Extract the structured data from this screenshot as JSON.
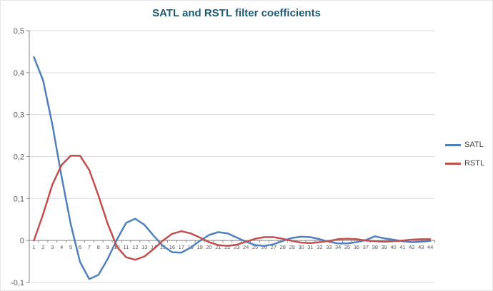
{
  "title": "SATL and RSTL filter coefficients",
  "colors": {
    "title": "#1F5B73",
    "gridline": "#D9D9D9",
    "axis": "#868686",
    "axis_text": "#595959",
    "satl": "#4F81BD",
    "rstl": "#C0504D"
  },
  "legend": {
    "items": [
      {
        "label": "SATL"
      },
      {
        "label": "RSTL"
      }
    ]
  },
  "chart_data": {
    "type": "line",
    "title": "SATL and RSTL filter coefficients",
    "xlabel": "",
    "ylabel": "",
    "ylim": [
      -0.1,
      0.5
    ],
    "grid": true,
    "legend_position": "right",
    "ytick_values": [
      0.5,
      0.4,
      0.3,
      0.2,
      0.1,
      0,
      -0.1
    ],
    "ytick_labels": [
      "0,5",
      "0,4",
      "0,3",
      "0,2",
      "0,1",
      "0",
      "-0,1"
    ],
    "categories": [
      1,
      2,
      3,
      4,
      5,
      6,
      7,
      8,
      9,
      10,
      11,
      12,
      13,
      14,
      15,
      16,
      17,
      18,
      19,
      20,
      21,
      22,
      23,
      24,
      25,
      26,
      27,
      28,
      29,
      30,
      31,
      32,
      33,
      34,
      35,
      36,
      37,
      38,
      39,
      40,
      41,
      42,
      43,
      44
    ],
    "series": [
      {
        "name": "SATL",
        "color": "#4F81BD",
        "values": [
          0.437,
          0.381,
          0.276,
          0.152,
          0.038,
          -0.051,
          -0.092,
          -0.082,
          -0.044,
          0.002,
          0.042,
          0.052,
          0.037,
          0.011,
          -0.013,
          -0.028,
          -0.029,
          -0.017,
          -0.001,
          0.013,
          0.02,
          0.017,
          0.007,
          -0.003,
          -0.011,
          -0.013,
          -0.009,
          -0.001,
          0.006,
          0.009,
          0.008,
          0.003,
          -0.003,
          -0.007,
          -0.007,
          -0.004,
          0.001,
          0.01,
          0.005,
          0.002,
          -0.002,
          -0.004,
          -0.003,
          -0.001
        ]
      },
      {
        "name": "RSTL",
        "color": "#C0504D",
        "values": [
          0.0,
          0.063,
          0.133,
          0.18,
          0.202,
          0.202,
          0.168,
          0.107,
          0.04,
          -0.015,
          -0.04,
          -0.046,
          -0.038,
          -0.02,
          0.0,
          0.016,
          0.022,
          0.017,
          0.007,
          -0.004,
          -0.011,
          -0.013,
          -0.01,
          -0.003,
          0.004,
          0.008,
          0.008,
          0.004,
          -0.001,
          -0.005,
          -0.006,
          -0.004,
          -0.001,
          0.003,
          0.004,
          0.003,
          0.0,
          -0.002,
          -0.003,
          -0.002,
          0.0,
          0.002,
          0.003,
          0.003
        ]
      }
    ]
  }
}
